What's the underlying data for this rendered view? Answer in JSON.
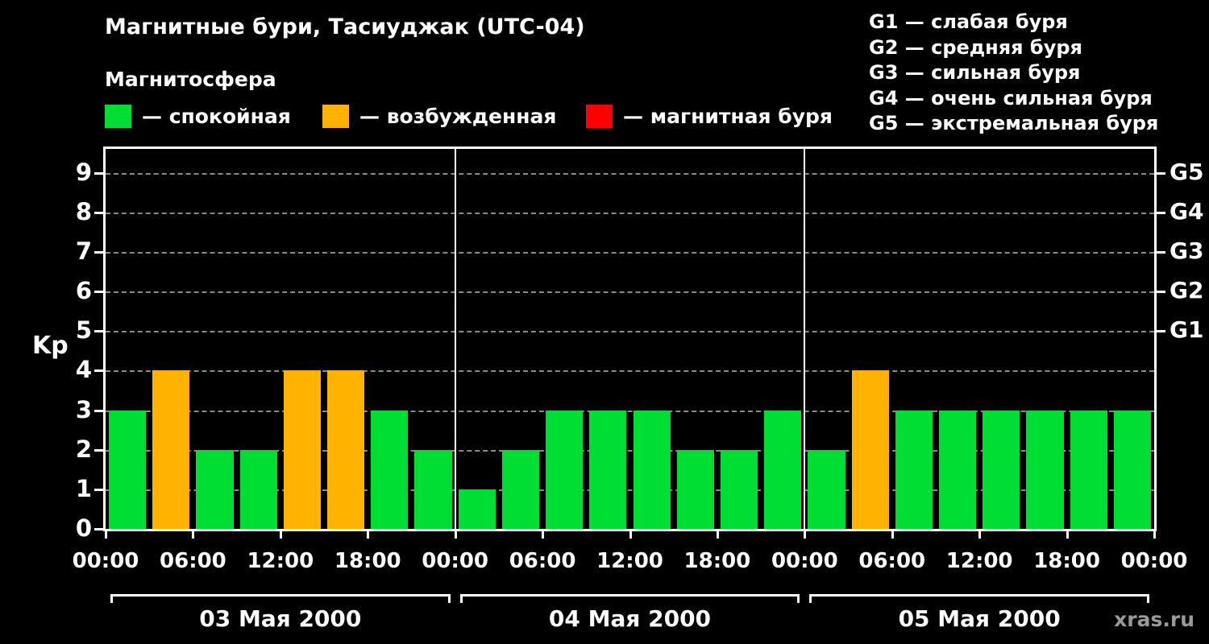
{
  "title": "Магнитные бури, Тасиуджак (UTC-04)",
  "legend": {
    "title": "Магнитосфера",
    "items": [
      {
        "name": "quiet",
        "label": "— спокойная",
        "color": "#00dd33"
      },
      {
        "name": "active",
        "label": "— возбужденная",
        "color": "#ffb300"
      },
      {
        "name": "storm",
        "label": "— магнитная буря",
        "color": "#ff0000"
      }
    ]
  },
  "storm_scale": [
    {
      "code": "G1",
      "label": "— слабая буря"
    },
    {
      "code": "G2",
      "label": "— средняя буря"
    },
    {
      "code": "G3",
      "label": "— сильная буря"
    },
    {
      "code": "G4",
      "label": "— очень сильная буря"
    },
    {
      "code": "G5",
      "label": "— экстремальная буря"
    }
  ],
  "watermark": "xras.ru",
  "chart_data": {
    "type": "bar",
    "title": "Магнитные бури, Тасиуджак (UTC-04)",
    "ylabel": "Kp",
    "ylim": [
      0,
      9.6
    ],
    "yticks": [
      0,
      1,
      2,
      3,
      4,
      5,
      6,
      7,
      8,
      9
    ],
    "right_axis_ticks": [
      {
        "value": 5,
        "label": "G1"
      },
      {
        "value": 6,
        "label": "G2"
      },
      {
        "value": 7,
        "label": "G3"
      },
      {
        "value": 8,
        "label": "G4"
      },
      {
        "value": 9,
        "label": "G5"
      }
    ],
    "x_ticks_per_day": [
      "00:00",
      "06:00",
      "12:00",
      "18:00"
    ],
    "x_tick_final": "00:00",
    "grid": true,
    "legend_position": "top",
    "colors": {
      "quiet": "#00dd33",
      "active": "#ffb300",
      "storm": "#ff0000"
    },
    "color_rule": {
      "quiet_max_kp": 3,
      "active_kp": 4,
      "storm_min_kp": 5
    },
    "bar_interval_hours": 3,
    "days": [
      {
        "date": "03 Мая 2000",
        "values": [
          3,
          4,
          2,
          2,
          4,
          4,
          3,
          2
        ]
      },
      {
        "date": "04 Мая 2000",
        "values": [
          1,
          2,
          3,
          3,
          3,
          2,
          2,
          3
        ]
      },
      {
        "date": "05 Мая 2000",
        "values": [
          2,
          4,
          3,
          3,
          3,
          3,
          3,
          3
        ]
      }
    ]
  }
}
